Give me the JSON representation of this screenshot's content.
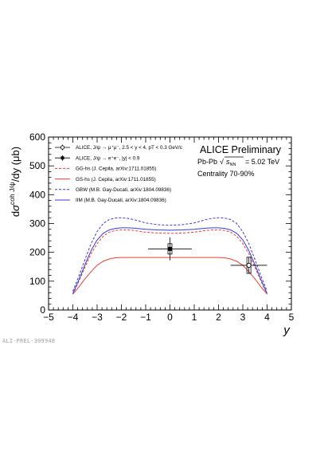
{
  "chart_data": {
    "type": "line",
    "title": "ALICE Preliminary",
    "xlabel": "y",
    "ylabel": "dσ^{coh J/ψ}/dy (μb)",
    "ylabel_parts": {
      "pre": "d",
      "sigma": "σ",
      "sup": "coh J/ψ",
      "post": "/dy (μb)"
    },
    "xlim": [
      -5,
      5
    ],
    "ylim": [
      0,
      600
    ],
    "xticks": [
      "−5",
      "−4",
      "−3",
      "−2",
      "−1",
      "0",
      "1",
      "2",
      "3",
      "4",
      "5"
    ],
    "yticks": [
      "0",
      "100",
      "200",
      "300",
      "400",
      "500",
      "600"
    ],
    "grid": false,
    "legend_position": "top-left",
    "annotations": {
      "system": "Pb-Pb",
      "energy_value": "= 5.02 TeV",
      "centrality": "Centrality 70-90%"
    },
    "watermark": "ALI-PREL-309948",
    "legend": [
      {
        "label": "ALICE, J/ψ → μ⁺μ⁻, 2.5 < y < 4, pT < 0.3 GeV/c",
        "marker": "open-circle"
      },
      {
        "label": "ALICE, J/ψ → e⁺e⁻, |y| < 0.9",
        "marker": "filled-square"
      },
      {
        "label": "GG-hs (J. Cepila, arXiv:1711.01855)",
        "style": "dashed",
        "color": "#e8413a"
      },
      {
        "label": "GS-hs (J. Cepila, arXiv:1711.01855)",
        "style": "solid",
        "color": "#e8413a"
      },
      {
        "label": "GBW (M.B. Gay-Ducati, arXiv:1804.09836)",
        "style": "dashed",
        "color": "#3b3bd9"
      },
      {
        "label": "IIM (M.B. Gay-Ducati, arXiv:1804.09836)",
        "style": "solid",
        "color": "#3b3bd9"
      }
    ],
    "data_points": [
      {
        "name": "ALICE, J/ψ → e⁺e⁻, |y| < 0.9",
        "x": 0.0,
        "y": 212,
        "x_err": 0.9,
        "stat_err": 40,
        "syst_err": 18,
        "marker": "filled-square"
      },
      {
        "name": "ALICE, J/ψ → μ⁺μ⁻, 2.5 < y < 4, pT < 0.3 GeV/c",
        "x": 3.25,
        "y": 155,
        "x_err": 0.75,
        "stat_err": 28,
        "syst_err": 28,
        "marker": "open-circle"
      }
    ],
    "series": [
      {
        "name": "GG-hs (J. Cepila, arXiv:1711.01855)",
        "style": "dashed",
        "color": "#e8413a",
        "x": [
          -4,
          -3.75,
          -3.5,
          -3.25,
          -3,
          -2.75,
          -2.5,
          -2.25,
          -2,
          -1.75,
          -1.5,
          -1.25,
          -1,
          -0.5,
          0,
          0.5,
          1,
          1.25,
          1.5,
          1.75,
          2,
          2.25,
          2.5,
          2.75,
          3,
          3.25,
          3.5,
          3.75,
          4
        ],
        "y": [
          55,
          100,
          148,
          195,
          230,
          256,
          270,
          276,
          278,
          278,
          276,
          273,
          270,
          267,
          266,
          267,
          270,
          273,
          276,
          278,
          278,
          276,
          270,
          256,
          230,
          195,
          148,
          100,
          55
        ]
      },
      {
        "name": "GS-hs (J. Cepila, arXiv:1711.01855)",
        "style": "solid",
        "color": "#e8413a",
        "x": [
          -4,
          -3.75,
          -3.5,
          -3.25,
          -3,
          -2.75,
          -2.5,
          -2.25,
          -2,
          -1.75,
          -1.5,
          -1.25,
          -1,
          -0.5,
          0,
          0.5,
          1,
          1.25,
          1.5,
          1.75,
          2,
          2.25,
          2.5,
          2.75,
          3,
          3.25,
          3.5,
          3.75,
          4
        ],
        "y": [
          55,
          80,
          108,
          133,
          155,
          169,
          177,
          181,
          182,
          182,
          182,
          182,
          182,
          182,
          182,
          182,
          182,
          182,
          182,
          182,
          182,
          181,
          177,
          169,
          155,
          133,
          108,
          80,
          55
        ]
      },
      {
        "name": "GBW (M.B. Gay-Ducati, arXiv:1804.09836)",
        "style": "dashed",
        "color": "#3b3bd9",
        "x": [
          -4,
          -3.75,
          -3.5,
          -3.25,
          -3,
          -2.75,
          -2.5,
          -2.25,
          -2,
          -1.75,
          -1.5,
          -1.25,
          -1,
          -0.5,
          0,
          0.5,
          1,
          1.25,
          1.5,
          1.75,
          2,
          2.25,
          2.5,
          2.75,
          3,
          3.25,
          3.5,
          3.75,
          4
        ],
        "y": [
          65,
          118,
          175,
          230,
          272,
          300,
          314,
          319,
          320,
          318,
          314,
          308,
          302,
          296,
          294,
          296,
          302,
          308,
          314,
          318,
          320,
          319,
          314,
          300,
          272,
          230,
          175,
          118,
          65
        ]
      },
      {
        "name": "IIM (M.B. Gay-Ducati, arXiv:1804.09836)",
        "style": "solid",
        "color": "#3b3bd9",
        "x": [
          -4,
          -3.75,
          -3.5,
          -3.25,
          -3,
          -2.75,
          -2.5,
          -2.25,
          -2,
          -1.75,
          -1.5,
          -1.25,
          -1,
          -0.5,
          0,
          0.5,
          1,
          1.25,
          1.5,
          1.75,
          2,
          2.25,
          2.5,
          2.75,
          3,
          3.25,
          3.5,
          3.75,
          4
        ],
        "y": [
          57,
          105,
          157,
          206,
          243,
          266,
          278,
          283,
          285,
          285,
          284,
          282,
          280,
          278,
          277,
          278,
          280,
          282,
          284,
          285,
          285,
          283,
          278,
          266,
          243,
          206,
          157,
          105,
          57
        ]
      }
    ]
  }
}
